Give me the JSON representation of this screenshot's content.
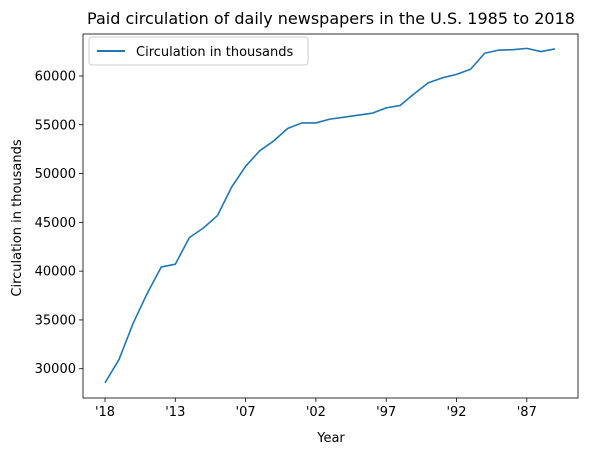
{
  "chart_data": {
    "type": "line",
    "title": "Paid circulation of daily newspapers in the U.S. 1985 to 2018",
    "xlabel": "Year",
    "ylabel": "Circulation in thousands",
    "legend": {
      "placement": "top-left",
      "entries": [
        "Circulation in thousands"
      ]
    },
    "grid": false,
    "x_order": "descending",
    "x_tick_labels": [
      "'18",
      "'13",
      "'07",
      "'02",
      "'97",
      "'92",
      "'87"
    ],
    "y_ticks": [
      30000,
      35000,
      40000,
      45000,
      50000,
      55000,
      60000
    ],
    "ylim": [
      27000,
      64300
    ],
    "series": [
      {
        "name": "Circulation in thousands",
        "color": "#1f77b4",
        "values": [
          28554,
          30948,
          34657,
          37712,
          40420,
          40712,
          43433,
          44421,
          45695,
          48597,
          50742,
          52329,
          53345,
          54626,
          55186,
          55185,
          55578,
          55773,
          55978,
          56183,
          56728,
          56983,
          58193,
          59305,
          59810,
          60164,
          60687,
          62328,
          62645,
          62695,
          62826,
          62502,
          62766
        ]
      }
    ]
  }
}
